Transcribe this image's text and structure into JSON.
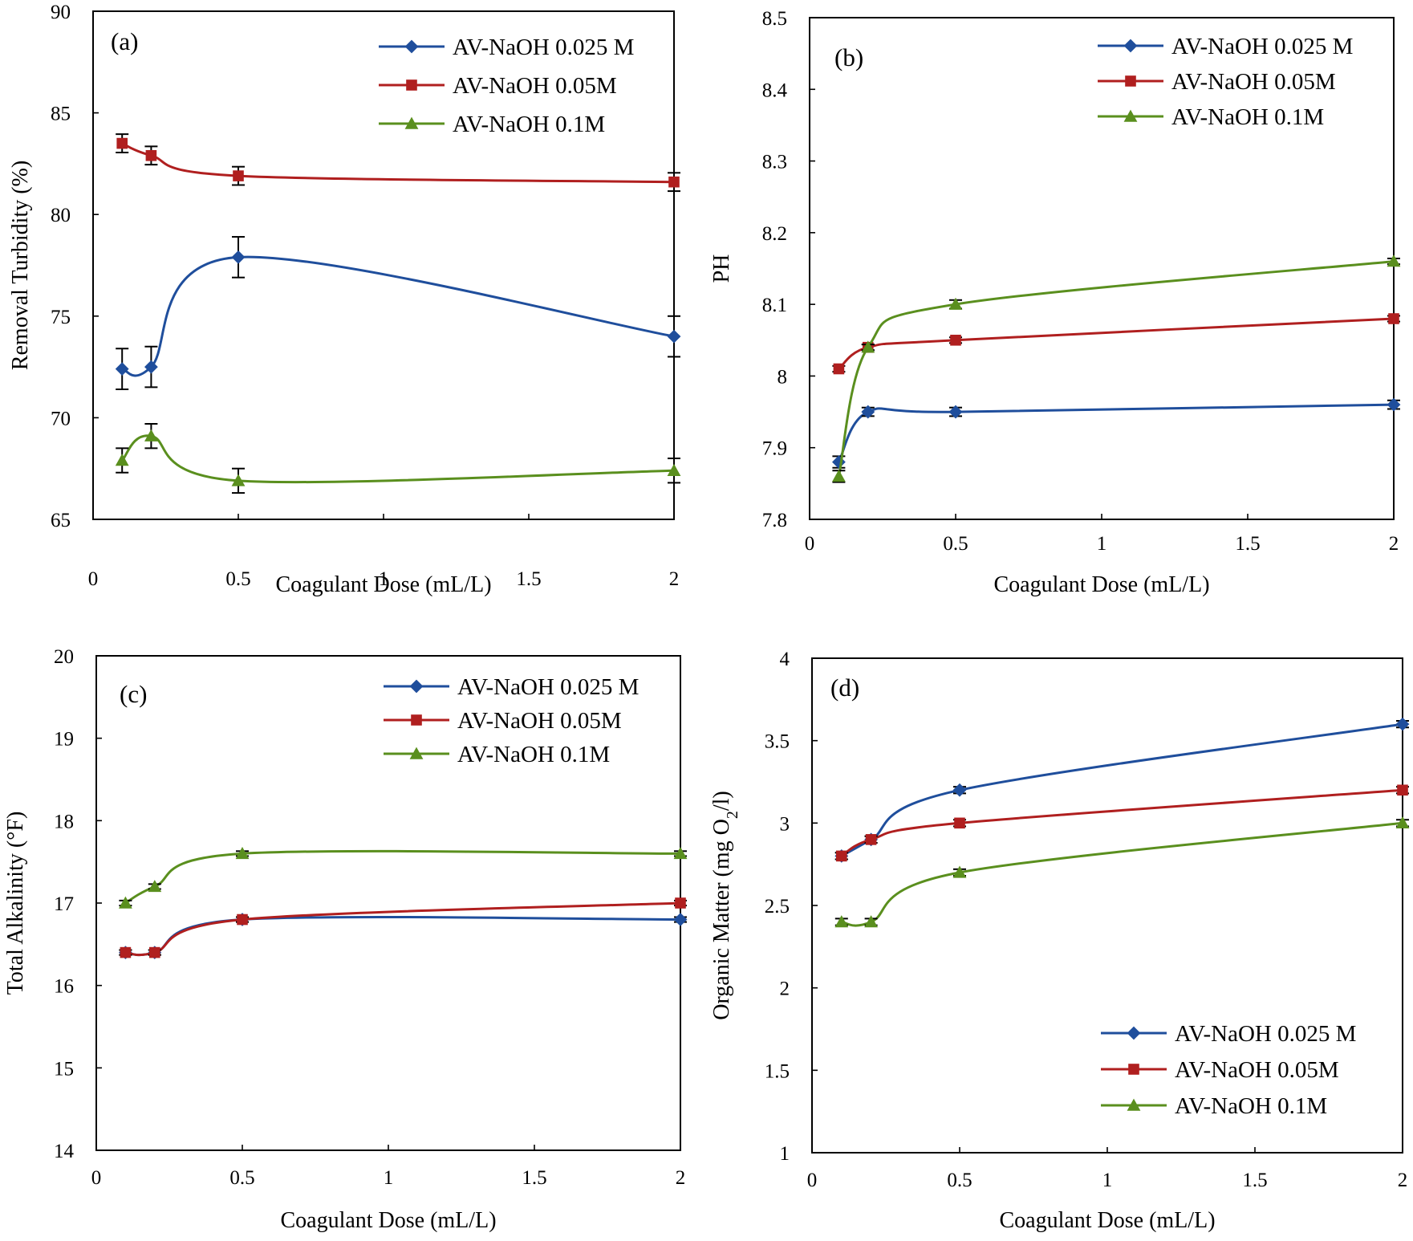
{
  "chart_data": [
    {
      "type": "line",
      "panel_label": "(a)",
      "xlabel": "Coagulant Dose (mL/L)",
      "ylabel": "Removal Turbidity (%)",
      "xlim": [
        0,
        2
      ],
      "ylim": [
        65,
        90
      ],
      "x_ticks": [
        "0",
        "0.5",
        "1",
        "1.5",
        "2"
      ],
      "y_ticks": [
        "65",
        "70",
        "75",
        "80",
        "85",
        "90"
      ],
      "x": [
        0.1,
        0.2,
        0.5,
        2
      ],
      "legend_position": "top-right",
      "series": [
        {
          "name": "AV-NaOH 0.025 M",
          "color": "#1f4e9c",
          "marker": "diamond",
          "values": [
            72.4,
            72.5,
            77.9,
            74.0
          ],
          "errors": [
            1.0,
            1.0,
            1.0,
            1.0
          ]
        },
        {
          "name": "AV-NaOH 0.05M",
          "color": "#b01f1f",
          "marker": "square",
          "values": [
            83.5,
            82.9,
            81.9,
            81.6
          ],
          "errors": [
            0.45,
            0.45,
            0.45,
            0.45
          ]
        },
        {
          "name": "AV-NaOH 0.1M",
          "color": "#5a8f1e",
          "marker": "triangle",
          "values": [
            67.9,
            69.1,
            66.9,
            67.4
          ],
          "errors": [
            0.6,
            0.6,
            0.6,
            0.6
          ]
        }
      ]
    },
    {
      "type": "line",
      "panel_label": "(b)",
      "xlabel": "Coagulant Dose (mL/L)",
      "ylabel": "PH",
      "xlim": [
        0,
        2
      ],
      "ylim": [
        7.8,
        8.5
      ],
      "x_ticks": [
        "0",
        "0.5",
        "1",
        "1.5",
        "2"
      ],
      "y_ticks": [
        "7.8",
        "7.9",
        "8",
        "8.1",
        "8.2",
        "8.3",
        "8.4",
        "8.5"
      ],
      "x": [
        0.1,
        0.2,
        0.5,
        2
      ],
      "legend_position": "top-right",
      "series": [
        {
          "name": "AV-NaOH 0.025 M",
          "color": "#1f4e9c",
          "marker": "diamond",
          "values": [
            7.88,
            7.95,
            7.95,
            7.96
          ],
          "errors": [
            0.008,
            0.006,
            0.006,
            0.006
          ]
        },
        {
          "name": "AV-NaOH 0.05M",
          "color": "#b01f1f",
          "marker": "square",
          "values": [
            8.01,
            8.04,
            8.05,
            8.08
          ],
          "errors": [
            0.004,
            0.004,
            0.004,
            0.004
          ]
        },
        {
          "name": "AV-NaOH 0.1M",
          "color": "#5a8f1e",
          "marker": "triangle",
          "values": [
            7.86,
            8.04,
            8.1,
            8.16
          ],
          "errors": [
            0.008,
            0.004,
            0.006,
            0.004
          ]
        }
      ]
    },
    {
      "type": "line",
      "panel_label": "(c)",
      "xlabel": "Coagulant Dose (mL/L)",
      "ylabel": "Total Alkalinity (°F)",
      "xlim": [
        0,
        2
      ],
      "ylim": [
        14,
        20
      ],
      "x_ticks": [
        "0",
        "0.5",
        "1",
        "1.5",
        "2"
      ],
      "y_ticks": [
        "14",
        "15",
        "16",
        "17",
        "18",
        "19",
        "20"
      ],
      "x": [
        0.1,
        0.2,
        0.5,
        2
      ],
      "legend_position": "top-right",
      "series": [
        {
          "name": "AV-NaOH 0.025 M",
          "color": "#1f4e9c",
          "marker": "diamond",
          "values": [
            16.4,
            16.4,
            16.8,
            16.8
          ],
          "errors": [
            0.03,
            0.03,
            0.03,
            0.03
          ]
        },
        {
          "name": "AV-NaOH 0.05M",
          "color": "#b01f1f",
          "marker": "square",
          "values": [
            16.4,
            16.4,
            16.8,
            17.0
          ],
          "errors": [
            0.03,
            0.03,
            0.03,
            0.03
          ]
        },
        {
          "name": "AV-NaOH 0.1M",
          "color": "#5a8f1e",
          "marker": "triangle",
          "values": [
            17.0,
            17.2,
            17.6,
            17.6
          ],
          "errors": [
            0.03,
            0.03,
            0.03,
            0.03
          ]
        }
      ]
    },
    {
      "type": "line",
      "panel_label": "(d)",
      "xlabel": "Coagulant Dose (mL/L)",
      "ylabel": "Organic Matter (mg  O",
      "ylabel_subscript": "2",
      "ylabel_suffix": "/l)",
      "xlim": [
        0,
        2
      ],
      "ylim": [
        1,
        4
      ],
      "x_ticks": [
        "0",
        "0.5",
        "1",
        "1.5",
        "2"
      ],
      "y_ticks": [
        "1",
        "1.5",
        "2",
        "2.5",
        "3",
        "3.5",
        "4"
      ],
      "x": [
        0.1,
        0.2,
        0.5,
        2
      ],
      "legend_position": "bottom-right",
      "series": [
        {
          "name": "AV-NaOH 0.025 M",
          "color": "#1f4e9c",
          "marker": "diamond",
          "values": [
            2.8,
            2.9,
            3.2,
            3.6
          ],
          "errors": [
            0.02,
            0.02,
            0.02,
            0.02
          ]
        },
        {
          "name": "AV-NaOH 0.05M",
          "color": "#b01f1f",
          "marker": "square",
          "values": [
            2.8,
            2.9,
            3.0,
            3.2
          ],
          "errors": [
            0.02,
            0.02,
            0.02,
            0.02
          ]
        },
        {
          "name": "AV-NaOH 0.1M",
          "color": "#5a8f1e",
          "marker": "triangle",
          "values": [
            2.4,
            2.4,
            2.7,
            3.0
          ],
          "errors": [
            0.02,
            0.02,
            0.02,
            0.02
          ]
        }
      ]
    }
  ]
}
